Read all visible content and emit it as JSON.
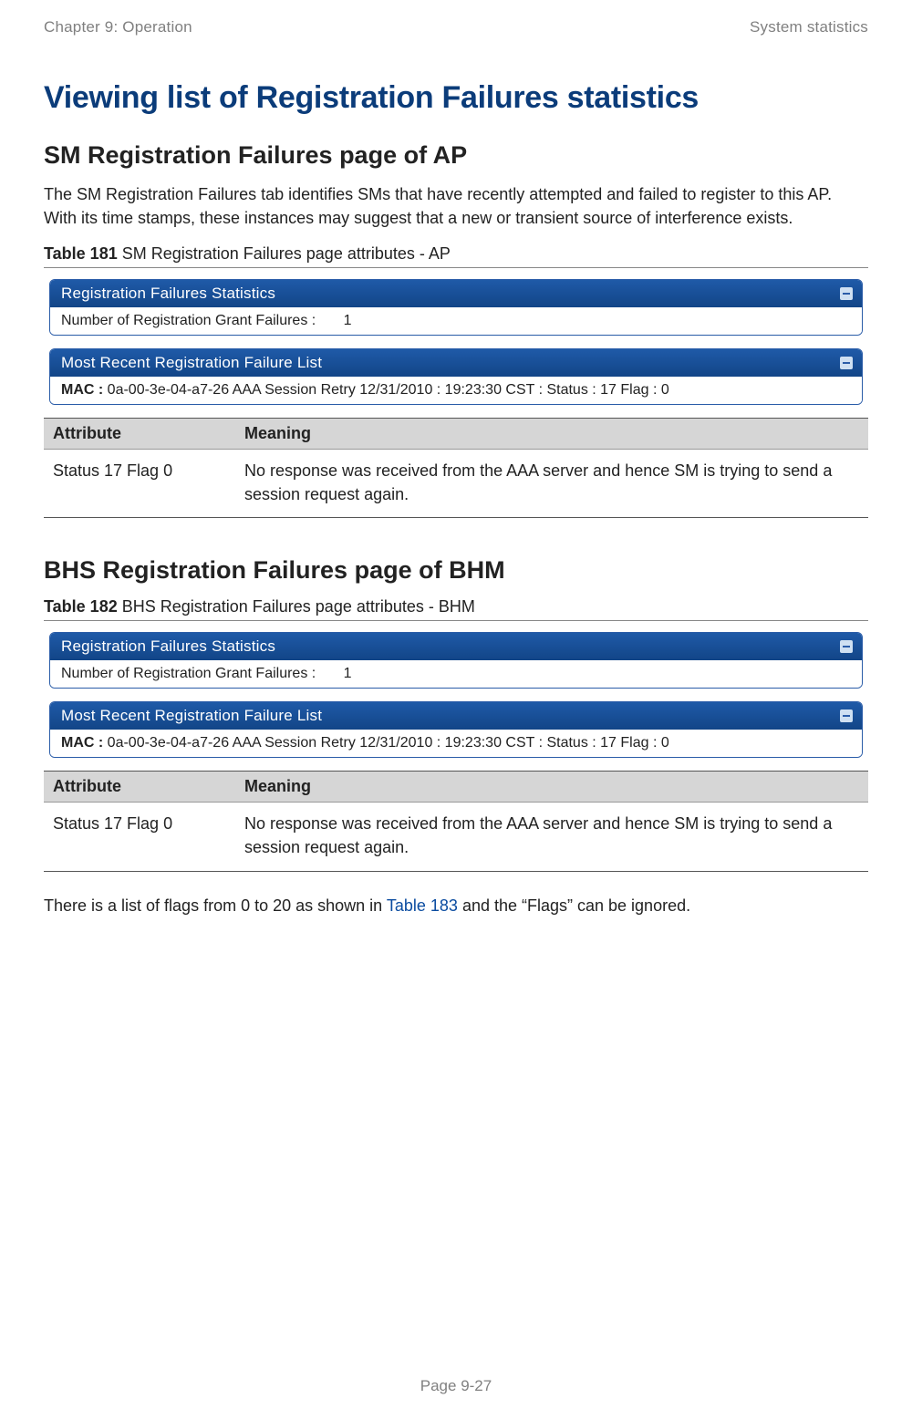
{
  "header": {
    "left": "Chapter 9:  Operation",
    "right": "System statistics"
  },
  "title_h1": "Viewing list of Registration Failures statistics",
  "section1": {
    "h2": "SM Registration Failures page of AP",
    "intro": "The SM Registration Failures tab identifies SMs that have recently attempted and failed to register to this AP. With its time stamps, these instances may suggest that a new or transient source of interference exists.",
    "caption_bold": "Table 181",
    "caption_rest": " SM Registration Failures page attributes - AP",
    "panel1": {
      "title": "Registration Failures Statistics",
      "row_label": "Number of Registration Grant Failures :",
      "row_value": "1"
    },
    "panel2": {
      "title": "Most Recent Registration Failure List",
      "mac_label": "MAC :",
      "mac_rest": " 0a-00-3e-04-a7-26 AAA Session Retry 12/31/2010 : 19:23:30 CST : Status : 17 Flag : 0"
    },
    "table": {
      "h_attr": "Attribute",
      "h_meaning": "Meaning",
      "r1_attr": "Status 17 Flag 0",
      "r1_meaning": "No response was received from the AAA server and hence SM is trying to send a session request again."
    }
  },
  "section2": {
    "h2": "BHS Registration Failures page of BHM",
    "caption_bold": "Table 182",
    "caption_rest": " BHS Registration Failures page attributes - BHM",
    "panel1": {
      "title": "Registration Failures Statistics",
      "row_label": "Number of Registration Grant Failures :",
      "row_value": "1"
    },
    "panel2": {
      "title": "Most Recent Registration Failure List",
      "mac_label": "MAC :",
      "mac_rest": " 0a-00-3e-04-a7-26 AAA Session Retry 12/31/2010 : 19:23:30 CST : Status : 17 Flag : 0"
    },
    "table": {
      "h_attr": "Attribute",
      "h_meaning": "Meaning",
      "r1_attr": "Status 17 Flag 0",
      "r1_meaning": "No response was received from the AAA server and hence SM is trying to send a session request again."
    }
  },
  "note": {
    "pre": "There is a list of flags from 0 to 20 as shown in ",
    "link": "Table 183",
    "post": " and the “Flags” can be ignored."
  },
  "footer": "Page 9-27"
}
